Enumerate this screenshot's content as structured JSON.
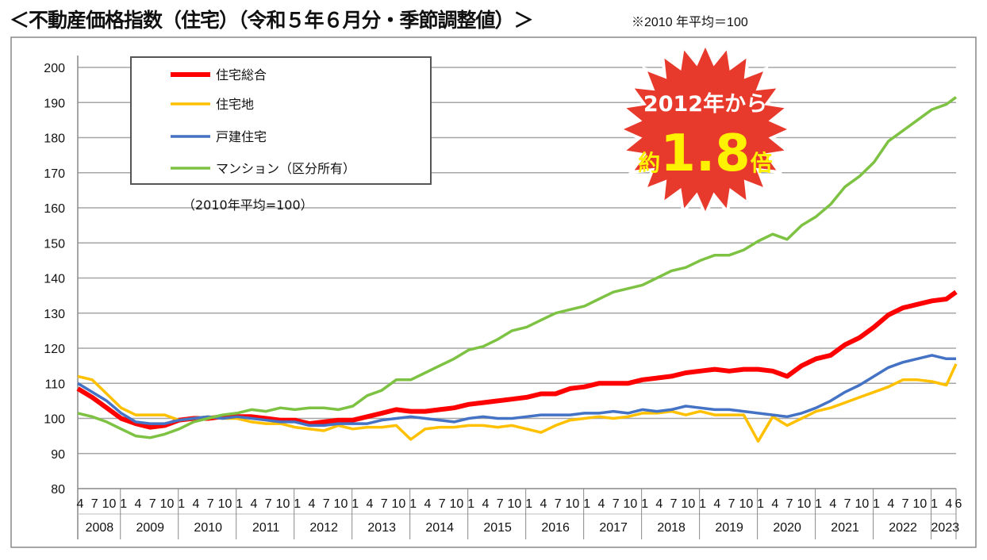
{
  "title": "＜不動産価格指数（住宅）（令和５年６月分・季節調整値）＞",
  "note": "※2010 年平均＝100",
  "badge": {
    "line1": "2012年から",
    "prefix": "約",
    "number": "1.8",
    "suffix": "倍",
    "color": "#e83a2c",
    "number_color": "#fff200"
  },
  "chart_data": {
    "type": "line",
    "ylim": [
      80,
      200
    ],
    "yticks": [
      80,
      90,
      100,
      110,
      120,
      130,
      140,
      150,
      160,
      170,
      180,
      190,
      200
    ],
    "grid": true,
    "legend_position": "top-left",
    "base_note": "（2010年平均=100）",
    "x_start": "2008-04",
    "x_end": "2023-06",
    "years": [
      "2008",
      "2009",
      "2010",
      "2011",
      "2012",
      "2013",
      "2014",
      "2015",
      "2016",
      "2017",
      "2018",
      "2019",
      "2020",
      "2021",
      "2022",
      "2023"
    ],
    "month_ticks": [
      "1",
      "4",
      "7",
      "10"
    ],
    "month_ticks_2023": [
      "1",
      "4",
      "6"
    ],
    "x": [
      "2008-04",
      "2008-07",
      "2008-10",
      "2009-01",
      "2009-04",
      "2009-07",
      "2009-10",
      "2010-01",
      "2010-04",
      "2010-07",
      "2010-10",
      "2011-01",
      "2011-04",
      "2011-07",
      "2011-10",
      "2012-01",
      "2012-04",
      "2012-07",
      "2012-10",
      "2013-01",
      "2013-04",
      "2013-07",
      "2013-10",
      "2014-01",
      "2014-04",
      "2014-07",
      "2014-10",
      "2015-01",
      "2015-04",
      "2015-07",
      "2015-10",
      "2016-01",
      "2016-04",
      "2016-07",
      "2016-10",
      "2017-01",
      "2017-04",
      "2017-07",
      "2017-10",
      "2018-01",
      "2018-04",
      "2018-07",
      "2018-10",
      "2019-01",
      "2019-04",
      "2019-07",
      "2019-10",
      "2020-01",
      "2020-04",
      "2020-07",
      "2020-10",
      "2021-01",
      "2021-04",
      "2021-07",
      "2021-10",
      "2022-01",
      "2022-04",
      "2022-07",
      "2022-10",
      "2023-01",
      "2023-04",
      "2023-06"
    ],
    "series": [
      {
        "name": "住宅総合",
        "color": "#ff0000",
        "values": [
          108.5,
          106,
          103,
          100,
          98.5,
          97.5,
          98,
          99.5,
          100,
          100,
          100.5,
          100.5,
          100.5,
          100,
          99.5,
          99.5,
          98.5,
          99,
          99.5,
          99.5,
          100.5,
          101.5,
          102.5,
          102,
          102,
          102.5,
          103,
          104,
          104.5,
          105,
          105.5,
          106,
          107,
          107,
          108.5,
          109,
          110,
          110,
          110,
          111,
          111.5,
          112,
          113,
          113.5,
          114,
          113.5,
          114,
          114,
          113.5,
          112,
          115,
          117,
          118,
          121,
          123,
          126,
          129.5,
          131.5,
          132.5,
          133.5,
          134,
          136
        ]
      },
      {
        "name": "住宅地",
        "color": "#ffc000",
        "values": [
          112,
          111,
          107,
          103,
          101,
          101,
          101,
          99.5,
          100,
          100.5,
          100,
          100,
          99,
          98.5,
          98.5,
          97.5,
          97,
          96.5,
          98,
          97,
          97.5,
          97.5,
          98,
          94,
          97,
          97.5,
          97.5,
          98,
          98,
          97.5,
          98,
          97,
          96,
          98,
          99.5,
          100,
          100.5,
          100,
          100.5,
          101.5,
          101.5,
          102,
          101,
          102,
          101,
          101,
          101,
          93.5,
          100.5,
          98,
          100,
          102,
          103,
          104.5,
          106,
          107.5,
          109,
          111,
          111,
          110.5,
          109.5,
          115.5
        ]
      },
      {
        "name": "戸建住宅",
        "color": "#4472c4",
        "values": [
          110,
          107.5,
          105,
          101.5,
          99,
          98.5,
          98.5,
          99.5,
          100,
          100.5,
          100,
          100.5,
          100,
          99.5,
          99,
          99,
          98,
          98,
          98.5,
          98.5,
          98.5,
          99.5,
          100,
          100.5,
          100,
          99.5,
          99,
          100,
          100.5,
          100,
          100,
          100.5,
          101,
          101,
          101,
          101.5,
          101.5,
          102,
          101.5,
          102.5,
          102,
          102.5,
          103.5,
          103,
          102.5,
          102.5,
          102,
          101.5,
          101,
          100.5,
          101.5,
          103,
          105,
          107.5,
          109.5,
          112,
          114.5,
          116,
          117,
          118,
          117,
          117
        ]
      },
      {
        "name": "マンション（区分所有）",
        "color": "#7dc242",
        "values": [
          101.5,
          100.5,
          99,
          97,
          95,
          94.5,
          95.5,
          97,
          99,
          100,
          101,
          101.5,
          102.5,
          102,
          103,
          102.5,
          103,
          103,
          102.5,
          103.5,
          106.5,
          108,
          111,
          111,
          113,
          115,
          117,
          119.5,
          120.5,
          122.5,
          125,
          126,
          128,
          130,
          131,
          132,
          134,
          136,
          137,
          138,
          140,
          142,
          143,
          145,
          146.5,
          146.5,
          148,
          150.5,
          152.5,
          151,
          155,
          157.5,
          161,
          166,
          169,
          173,
          179,
          182,
          185,
          188,
          189.5,
          191.5
        ]
      }
    ]
  }
}
